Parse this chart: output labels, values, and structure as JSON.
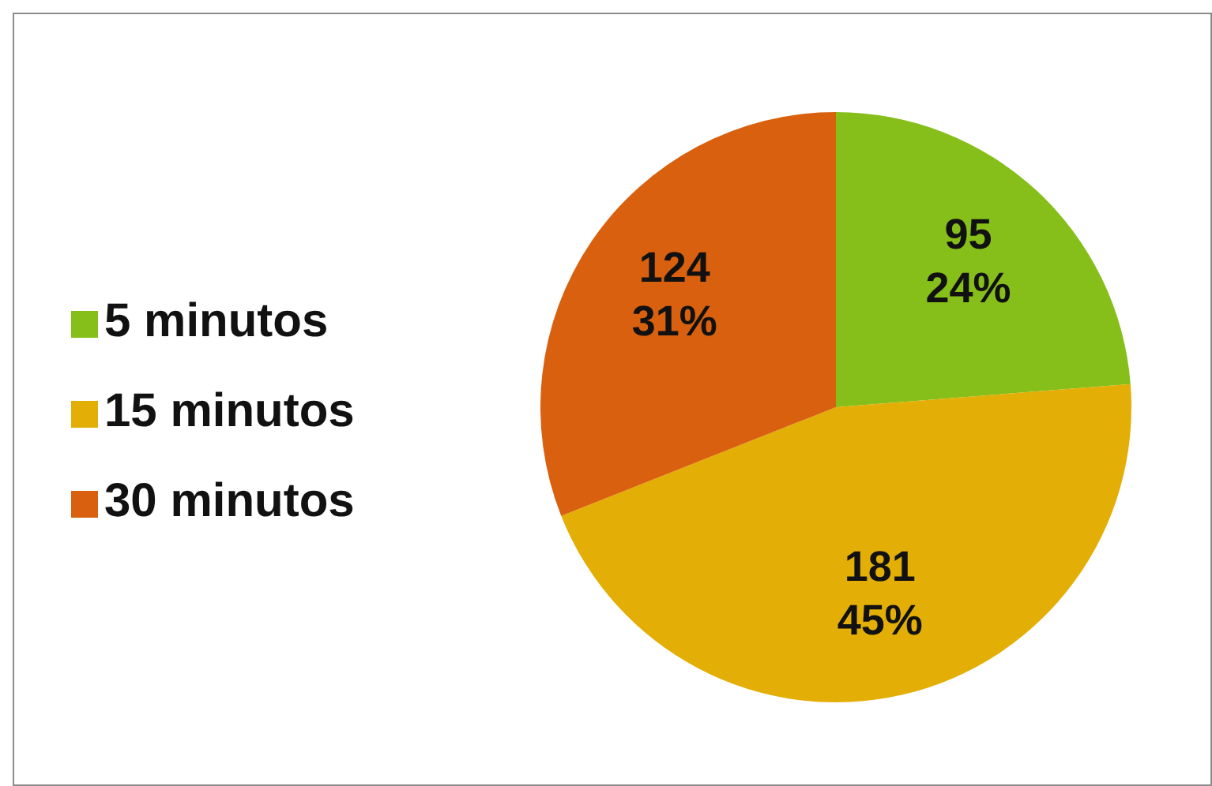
{
  "chart_data": {
    "type": "pie",
    "categories": [
      "5 minutos",
      "15 minutos",
      "30 minutos"
    ],
    "values": [
      95,
      181,
      124
    ],
    "colors": [
      "#86bf1a",
      "#e3ae05",
      "#d9600f"
    ],
    "value_labels": [
      "95\n24%",
      "181\n45%",
      "124\n31%"
    ],
    "legend": "left"
  }
}
